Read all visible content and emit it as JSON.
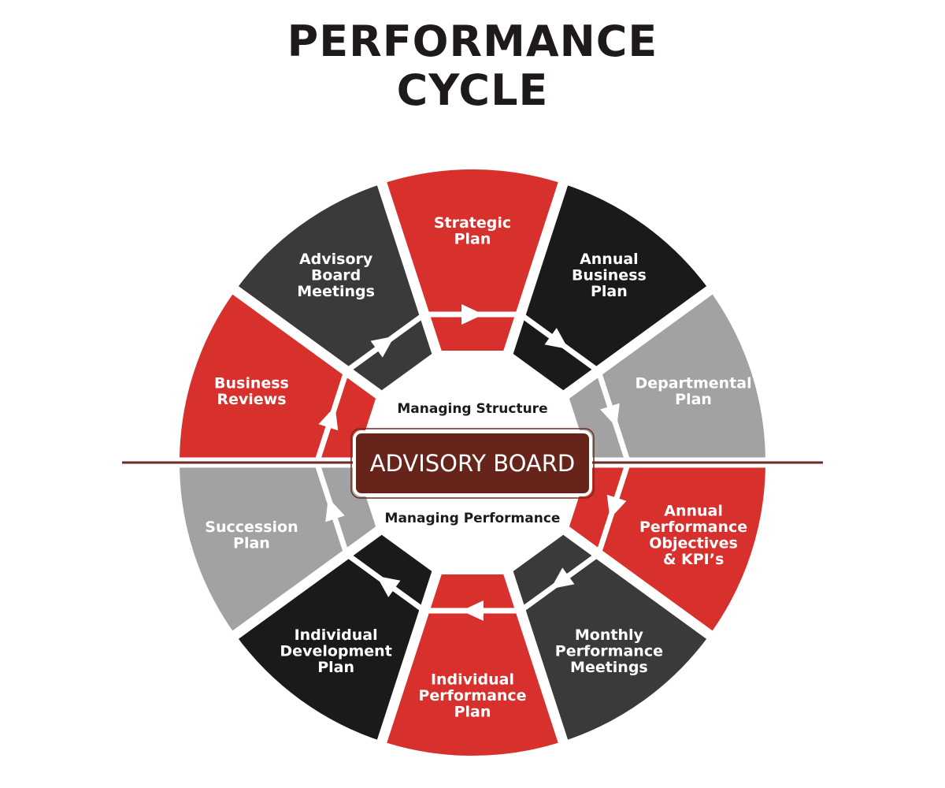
{
  "title": {
    "line1": "PERFORMANCE",
    "line2": "CYCLE"
  },
  "center": {
    "board_label": "ADVISORY BOARD",
    "top_label": "Managing Structure",
    "bottom_label": "Managing Performance"
  },
  "colors": {
    "red": "#d8302c",
    "black": "#1b1a1a",
    "dark_gray": "#3b393a",
    "light_gray": "#a2a2a2",
    "board": "#66241b",
    "divider": "#6b2a22"
  },
  "flow_direction": "clockwise",
  "segments": [
    {
      "lines": [
        "Strategic",
        "Plan"
      ],
      "color": "red"
    },
    {
      "lines": [
        "Annual",
        "Business",
        "Plan"
      ],
      "color": "black"
    },
    {
      "lines": [
        "Departmental",
        "Plan"
      ],
      "color": "light_gray"
    },
    {
      "lines": [
        "Annual",
        "Performance",
        "Objectives",
        "& KPI’s"
      ],
      "color": "red"
    },
    {
      "lines": [
        "Monthly",
        "Performance",
        "Meetings"
      ],
      "color": "dark_gray"
    },
    {
      "lines": [
        "Individual",
        "Performance",
        "Plan"
      ],
      "color": "red"
    },
    {
      "lines": [
        "Individual",
        "Development",
        "Plan"
      ],
      "color": "black"
    },
    {
      "lines": [
        "Succession",
        "Plan"
      ],
      "color": "light_gray"
    },
    {
      "lines": [
        "Business",
        "Reviews"
      ],
      "color": "red"
    },
    {
      "lines": [
        "Advisory",
        "Board",
        "Meetings"
      ],
      "color": "dark_gray"
    }
  ]
}
